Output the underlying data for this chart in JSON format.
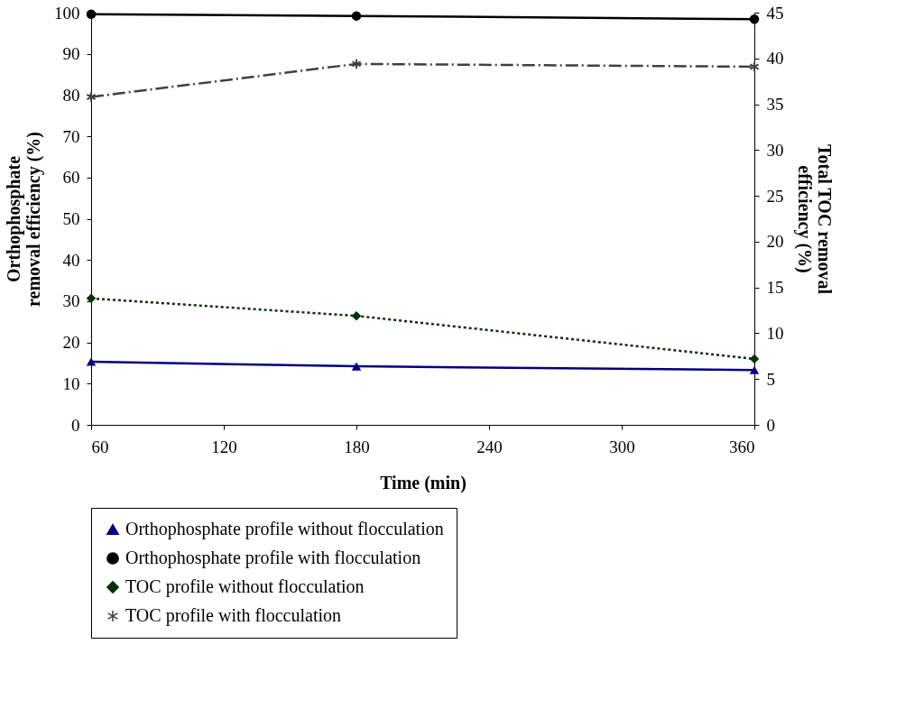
{
  "chart_data": {
    "type": "line",
    "xlabel": "Time (min)",
    "ylabel": "Orthophosphate\nremoval efficiency (%)",
    "y2label": "Total TOC removal\nefficiency (%)",
    "x": [
      60,
      180,
      360
    ],
    "xlim": [
      60,
      360
    ],
    "xticks": [
      60,
      120,
      180,
      240,
      300,
      360
    ],
    "ylim": [
      0,
      100
    ],
    "yticks": [
      0,
      10,
      20,
      30,
      40,
      50,
      60,
      70,
      80,
      90,
      100
    ],
    "y2lim": [
      0,
      45
    ],
    "y2ticks": [
      0,
      5,
      10,
      15,
      20,
      25,
      30,
      35,
      40,
      45
    ],
    "grid": false,
    "legend": "bottom",
    "series": [
      {
        "name": "Orthophosphate profile without flocculation",
        "color": "#000080",
        "values": [
          15.3,
          14.2,
          13.3
        ],
        "marker": "triangle",
        "line_style": "solid"
      },
      {
        "name": "Orthophosphate profile with flocculation",
        "color": "#000000",
        "values": [
          99.6,
          99.2,
          98.4
        ],
        "marker": "circle",
        "line_style": "solid"
      },
      {
        "name": "TOC profile without flocculation",
        "color": "#003300",
        "values": [
          13.8,
          11.9,
          7.2
        ],
        "marker": "diamond",
        "line_style": "dotted",
        "axis": "y2"
      },
      {
        "name": "TOC profile with flocculation",
        "color": "#404040",
        "values": [
          35.8,
          39.4,
          39.1
        ],
        "marker": "cross",
        "line_style": "dashed",
        "axis": "y2"
      }
    ]
  }
}
